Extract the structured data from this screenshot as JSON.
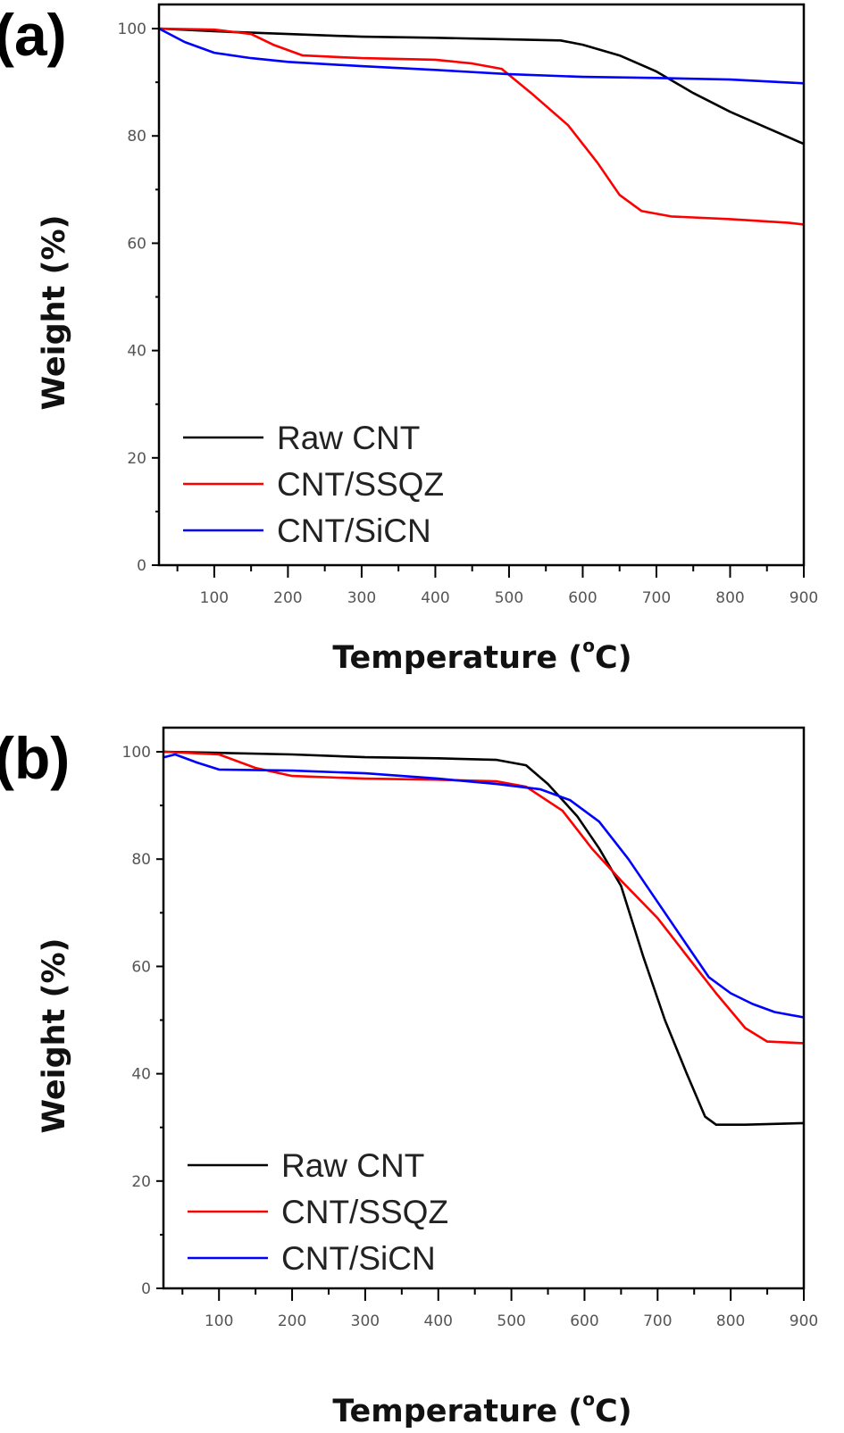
{
  "chart_data": [
    {
      "type": "line",
      "panel_label": "(a)",
      "title": "",
      "xlabel": "Temperature (",
      "xlabel_sup": "o",
      "xlabel_unit": "C)",
      "ylabel": "Weight (%)",
      "xlim": [
        25,
        900
      ],
      "ylim": [
        0,
        104.5
      ],
      "x_ticks": [
        100,
        200,
        300,
        400,
        500,
        600,
        700,
        800,
        900
      ],
      "x_tick_labels": [
        "100",
        "200",
        "300",
        "400",
        "500",
        "600",
        "700",
        "800",
        "900"
      ],
      "y_ticks": [
        0,
        20,
        40,
        60,
        80,
        100
      ],
      "y_tick_labels": [
        "0",
        "20",
        "40",
        "60",
        "80",
        "100"
      ],
      "grid": false,
      "legend_position": "bottom-left",
      "series": [
        {
          "name": "Raw CNT",
          "color": "#000000",
          "x": [
            25,
            100,
            200,
            300,
            400,
            500,
            570,
            600,
            650,
            700,
            750,
            800,
            850,
            900
          ],
          "y": [
            100,
            99.5,
            99,
            98.5,
            98.3,
            98,
            97.8,
            97,
            95,
            92,
            88,
            84.5,
            81.5,
            78.5
          ]
        },
        {
          "name": "CNT/SSQZ",
          "color": "#ff0000",
          "x": [
            25,
            100,
            150,
            180,
            220,
            300,
            400,
            450,
            490,
            530,
            580,
            620,
            650,
            680,
            720,
            800,
            880,
            900
          ],
          "y": [
            100,
            99.8,
            99,
            97,
            95,
            94.5,
            94.2,
            93.5,
            92.5,
            88,
            82,
            75,
            69,
            66,
            65,
            64.5,
            63.8,
            63.5
          ]
        },
        {
          "name": "CNT/SiCN",
          "color": "#0000ff",
          "x": [
            25,
            60,
            100,
            150,
            200,
            300,
            400,
            500,
            600,
            700,
            800,
            900
          ],
          "y": [
            100,
            97.5,
            95.5,
            94.5,
            93.8,
            93,
            92.3,
            91.5,
            91,
            90.8,
            90.5,
            89.8
          ]
        }
      ]
    },
    {
      "type": "line",
      "panel_label": "(b)",
      "title": "",
      "xlabel": "Temperature (",
      "xlabel_sup": "o",
      "xlabel_unit": "C)",
      "ylabel": "Weight (%)",
      "xlim": [
        24,
        900
      ],
      "ylim": [
        0,
        104.5
      ],
      "x_ticks": [
        100,
        200,
        300,
        400,
        500,
        600,
        700,
        800,
        900
      ],
      "x_tick_labels": [
        "100",
        "200",
        "300",
        "400",
        "500",
        "600",
        "700",
        "800",
        "900"
      ],
      "y_ticks": [
        0,
        20,
        40,
        60,
        80,
        100
      ],
      "y_tick_labels": [
        "0",
        "20",
        "40",
        "60",
        "80",
        "100"
      ],
      "grid": false,
      "legend_position": "bottom-left",
      "series": [
        {
          "name": "Raw CNT",
          "color": "#000000",
          "x": [
            25,
            100,
            200,
            300,
            400,
            480,
            520,
            550,
            590,
            620,
            650,
            680,
            710,
            740,
            765,
            780,
            820,
            900
          ],
          "y": [
            100,
            99.8,
            99.5,
            99,
            98.8,
            98.5,
            97.5,
            94,
            88,
            82,
            75,
            62,
            50,
            40,
            32,
            30.5,
            30.5,
            30.8
          ]
        },
        {
          "name": "CNT/SSQZ",
          "color": "#ff0000",
          "x": [
            25,
            100,
            150,
            200,
            300,
            400,
            480,
            520,
            570,
            610,
            650,
            700,
            740,
            780,
            820,
            850,
            900
          ],
          "y": [
            100,
            99.5,
            97,
            95.5,
            95,
            94.8,
            94.5,
            93.5,
            89,
            82,
            76,
            69,
            62,
            55,
            48.5,
            46,
            45.7
          ]
        },
        {
          "name": "CNT/SiCN",
          "color": "#0000ff",
          "x": [
            25,
            40,
            70,
            100,
            200,
            300,
            400,
            480,
            540,
            580,
            620,
            660,
            700,
            740,
            770,
            800,
            830,
            860,
            900
          ],
          "y": [
            99,
            99.5,
            98,
            96.7,
            96.5,
            96,
            95,
            94,
            93,
            91,
            87,
            80,
            72,
            64,
            58,
            55,
            53,
            51.5,
            50.5
          ]
        }
      ]
    }
  ]
}
